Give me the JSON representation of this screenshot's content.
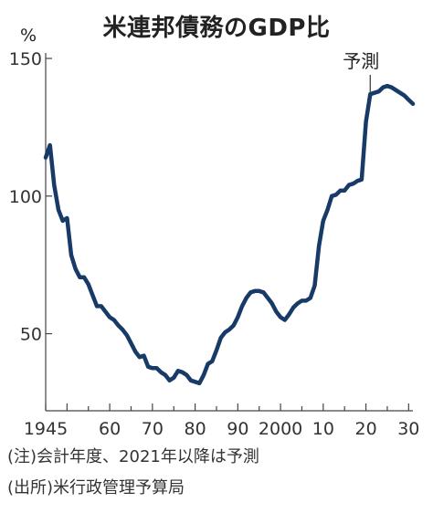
{
  "chart_data": {
    "type": "line",
    "title": "米連邦債務のGDP比",
    "ylabel": "%",
    "xlabel": "",
    "xlim": [
      1945,
      2031
    ],
    "ylim": [
      22,
      152
    ],
    "y_ticks": [
      50,
      100,
      150
    ],
    "x_ticks": [
      {
        "value": 1945,
        "label": "1945"
      },
      {
        "value": 1960,
        "label": "60"
      },
      {
        "value": 1970,
        "label": "70"
      },
      {
        "value": 1980,
        "label": "80"
      },
      {
        "value": 1990,
        "label": "90"
      },
      {
        "value": 2000,
        "label": "2000"
      },
      {
        "value": 2010,
        "label": "10"
      },
      {
        "value": 2020,
        "label": "20"
      },
      {
        "value": 2030,
        "label": "30"
      }
    ],
    "forecast_start": 2021,
    "annotation": "予測",
    "grid": false,
    "line_color": "#173a67",
    "series": [
      {
        "x": [
          1945,
          1946,
          1947,
          1948,
          1949,
          1950,
          1951,
          1952,
          1953,
          1954,
          1955,
          1956,
          1957,
          1958,
          1959,
          1960,
          1961,
          1962,
          1963,
          1964,
          1965,
          1966,
          1967,
          1968,
          1969,
          1970,
          1971,
          1972,
          1973,
          1974,
          1975,
          1976,
          1977,
          1978,
          1979,
          1980,
          1981,
          1982,
          1983,
          1984,
          1985,
          1986,
          1987,
          1988,
          1989,
          1990,
          1991,
          1992,
          1993,
          1994,
          1995,
          1996,
          1997,
          1998,
          1999,
          2000,
          2001,
          2002,
          2003,
          2004,
          2005,
          2006,
          2007,
          2008,
          2009,
          2010,
          2011,
          2012,
          2013,
          2014,
          2015,
          2016,
          2017,
          2018,
          2019,
          2020,
          2021,
          2022,
          2023,
          2024,
          2025,
          2026,
          2027,
          2028,
          2029,
          2030,
          2031
        ],
        "y": [
          114,
          118.5,
          104,
          95,
          91,
          92,
          78.5,
          73.5,
          70.5,
          70.5,
          68,
          64,
          60,
          60,
          58,
          56,
          55,
          53,
          51.5,
          49.5,
          46.5,
          43.5,
          41.5,
          42,
          38,
          37.5,
          37.5,
          36,
          35,
          33,
          34,
          36.5,
          36,
          35,
          33,
          32.5,
          32,
          35,
          39,
          40,
          44,
          48.5,
          50.5,
          51.5,
          53,
          56,
          60,
          63,
          65,
          65.5,
          65.5,
          65,
          63,
          61,
          58,
          56,
          55,
          57,
          59.5,
          61,
          62,
          62,
          63,
          67.5,
          82,
          91,
          95,
          100,
          100.5,
          102,
          102,
          104,
          104.5,
          105.5,
          106,
          127,
          137,
          137.5,
          138,
          139.5,
          140,
          139.5,
          138.5,
          137.5,
          136.5,
          135,
          133.5
        ]
      }
    ]
  },
  "notes": {
    "note1": "(注)会計年度、2021年以降は予測",
    "note2": "(出所)米行政管理予算局"
  }
}
